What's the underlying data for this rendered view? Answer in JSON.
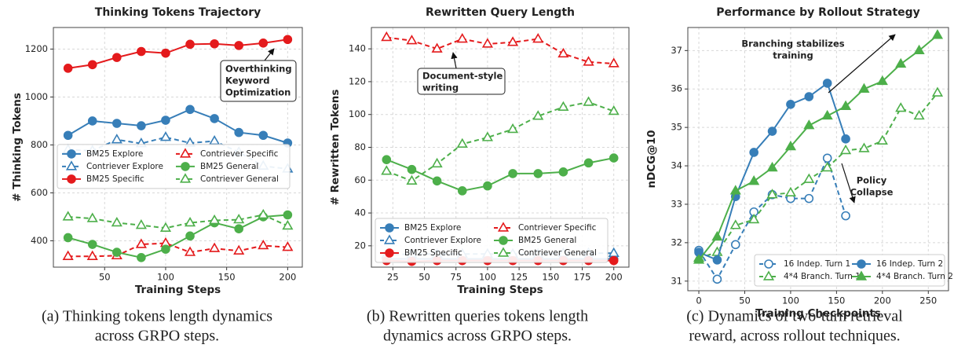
{
  "chart_data": [
    {
      "type": "line",
      "title": "Thinking Tokens Trajectory",
      "xlabel": "Training Steps",
      "ylabel": "# Thinking Tokens",
      "x": [
        20,
        40,
        60,
        80,
        100,
        120,
        140,
        160,
        180,
        200
      ],
      "xlim": [
        8,
        212
      ],
      "xticks": [
        50,
        100,
        150,
        200
      ],
      "ylim": [
        290,
        1290
      ],
      "yticks": [
        400,
        600,
        800,
        1000,
        1200
      ],
      "grid": true,
      "legend": "center left",
      "series": [
        {
          "name": "BM25 Explore",
          "color": "#377eb8",
          "dashed": false,
          "marker": "circle",
          "filled": true,
          "values": [
            840,
            900,
            890,
            880,
            903,
            948,
            910,
            852,
            840,
            808
          ]
        },
        {
          "name": "Contriever Explore",
          "color": "#377eb8",
          "dashed": true,
          "marker": "triangle",
          "filled": false,
          "values": [
            780,
            776,
            822,
            806,
            832,
            808,
            816,
            770,
            712,
            700
          ]
        },
        {
          "name": "BM25 Specific",
          "color": "#e41a1c",
          "dashed": false,
          "marker": "circle",
          "filled": true,
          "values": [
            1120,
            1135,
            1165,
            1190,
            1183,
            1220,
            1222,
            1215,
            1225,
            1240
          ]
        },
        {
          "name": "Contriever Specific",
          "color": "#e41a1c",
          "dashed": true,
          "marker": "triangle",
          "filled": false,
          "values": [
            335,
            335,
            338,
            385,
            390,
            352,
            368,
            358,
            380,
            373
          ]
        },
        {
          "name": "BM25 General",
          "color": "#4daf4a",
          "dashed": false,
          "marker": "circle",
          "filled": true,
          "values": [
            413,
            385,
            352,
            330,
            365,
            420,
            475,
            450,
            500,
            508
          ]
        },
        {
          "name": "Contriever General",
          "color": "#4daf4a",
          "dashed": true,
          "marker": "triangle",
          "filled": false,
          "values": [
            500,
            493,
            475,
            465,
            453,
            475,
            485,
            488,
            508,
            462
          ]
        }
      ],
      "annotations": [
        {
          "lines": [
            "Overthinking",
            "Keyword",
            "Optimization"
          ],
          "boxed": true
        }
      ],
      "caption": [
        "(a) Thinking tokens length dynamics",
        "across GRPO steps."
      ]
    },
    {
      "type": "line",
      "title": "Rewritten Query Length",
      "xlabel": "Training Steps",
      "ylabel": "# Rewritten Tokens",
      "x": [
        20,
        40,
        60,
        80,
        100,
        120,
        140,
        160,
        180,
        200
      ],
      "xlim": [
        8,
        212
      ],
      "xticks": [
        25,
        50,
        75,
        100,
        125,
        150,
        175,
        200
      ],
      "ylim": [
        7,
        153
      ],
      "yticks": [
        20,
        40,
        60,
        80,
        100,
        120,
        140
      ],
      "grid": true,
      "legend": "lower left",
      "series": [
        {
          "name": "BM25 Explore",
          "color": "#377eb8",
          "dashed": false,
          "marker": "circle",
          "filled": true,
          "values": [
            12,
            12,
            12,
            12,
            12,
            12,
            12,
            12,
            12,
            12
          ]
        },
        {
          "name": "Contriever Explore",
          "color": "#377eb8",
          "dashed": true,
          "marker": "triangle",
          "filled": false,
          "values": [
            14.5,
            15,
            15,
            15,
            15,
            15,
            15,
            15.5,
            15.5,
            15.5
          ]
        },
        {
          "name": "BM25 Specific",
          "color": "#e41a1c",
          "dashed": false,
          "marker": "circle",
          "filled": true,
          "values": [
            11,
            10.5,
            11,
            11,
            11,
            11,
            11,
            11,
            11,
            11
          ]
        },
        {
          "name": "Contriever Specific",
          "color": "#e41a1c",
          "dashed": true,
          "marker": "triangle",
          "filled": false,
          "values": [
            147,
            145,
            140,
            146,
            143,
            144,
            146,
            137,
            132,
            131
          ]
        },
        {
          "name": "BM25 General",
          "color": "#4daf4a",
          "dashed": false,
          "marker": "circle",
          "filled": true,
          "values": [
            72.5,
            66.5,
            59.5,
            53.5,
            56.5,
            64,
            64,
            65,
            70.5,
            73.5
          ]
        },
        {
          "name": "Contriever General",
          "color": "#4daf4a",
          "dashed": true,
          "marker": "triangle",
          "filled": false,
          "values": [
            65.5,
            59.5,
            70,
            82,
            86,
            91,
            99,
            104.5,
            107.5,
            102
          ]
        }
      ],
      "annotations": [
        {
          "lines": [
            "Document-style",
            "writing"
          ],
          "boxed": true
        }
      ],
      "caption": [
        "(b) Rewritten queries tokens length",
        "dynamics across GRPO steps."
      ]
    },
    {
      "type": "line",
      "title": "Performance by Rollout Strategy",
      "xlabel": "Training Checkpoints",
      "ylabel": "nDCG@10",
      "xlim": [
        -12,
        272
      ],
      "xticks": [
        0,
        50,
        100,
        150,
        200,
        250
      ],
      "ylim": [
        30.75,
        37.6
      ],
      "yticks": [
        31,
        32,
        33,
        34,
        35,
        36,
        37
      ],
      "grid": true,
      "legend": "lower right",
      "series": [
        {
          "name": "16 Indep. Turn 1",
          "color": "#377eb8",
          "dashed": true,
          "marker": "circle",
          "filled": false,
          "x": [
            0,
            20,
            40,
            60,
            80,
            100,
            120,
            140,
            160
          ],
          "values": [
            31.8,
            31.05,
            31.95,
            32.8,
            33.25,
            33.15,
            33.15,
            34.2,
            32.7
          ]
        },
        {
          "name": "4*4 Branch. Turn 1",
          "color": "#4daf4a",
          "dashed": true,
          "marker": "triangle",
          "filled": false,
          "x": [
            0,
            20,
            40,
            60,
            80,
            100,
            120,
            140,
            160,
            180,
            200,
            220,
            240,
            260
          ],
          "values": [
            31.6,
            31.75,
            32.45,
            32.6,
            33.25,
            33.3,
            33.65,
            33.95,
            34.4,
            34.45,
            34.65,
            35.5,
            35.3,
            35.9
          ]
        },
        {
          "name": "16 Indep. Turn 2",
          "color": "#377eb8",
          "dashed": false,
          "marker": "circle",
          "filled": true,
          "x": [
            0,
            20,
            40,
            60,
            80,
            100,
            120,
            140,
            160
          ],
          "values": [
            31.75,
            31.55,
            33.2,
            34.35,
            34.9,
            35.6,
            35.8,
            36.15,
            34.7
          ]
        },
        {
          "name": "4*4 Branch. Turn 2",
          "color": "#4daf4a",
          "dashed": false,
          "marker": "triangle",
          "filled": true,
          "x": [
            0,
            20,
            40,
            60,
            80,
            100,
            120,
            140,
            160,
            180,
            200,
            220,
            240,
            260
          ],
          "values": [
            31.55,
            32.15,
            33.35,
            33.6,
            33.95,
            34.5,
            35.05,
            35.3,
            35.55,
            36.0,
            36.2,
            36.65,
            37.0,
            37.4
          ]
        }
      ],
      "annotations": [
        {
          "lines": [
            "Branching stabilizes",
            "training"
          ],
          "boxed": false
        },
        {
          "lines": [
            "Policy",
            "Collapse"
          ],
          "boxed": false
        }
      ],
      "caption": [
        "(c) Dynamics of two-turn retrieval",
        "reward, across rollout techniques."
      ]
    }
  ]
}
